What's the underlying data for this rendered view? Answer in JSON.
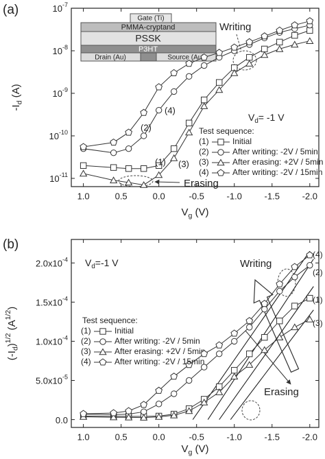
{
  "chart_data": [
    {
      "type": "line",
      "label": "(a)",
      "xlabel": [
        {
          "text": "V"
        },
        {
          "text": "g",
          "sub": true
        },
        {
          "text": " (V)"
        }
      ],
      "ylabel": [
        {
          "text": "-I"
        },
        {
          "text": "d",
          "sub": true
        },
        {
          "text": " (A)"
        }
      ],
      "condition": [
        {
          "text": "V"
        },
        {
          "text": "d",
          "sub": true
        },
        {
          "text": "= -1 V"
        }
      ],
      "log_y": true,
      "xlim": [
        1.16,
        -2.12
      ],
      "ylim": [
        6.4e-12,
        1e-07
      ],
      "xticks": [
        {
          "value": 1,
          "label": "1.0"
        },
        0.5,
        {
          "value": 0,
          "label": "0.0"
        },
        -0.5,
        {
          "value": -1,
          "label": "-1.0"
        },
        -1.5,
        {
          "value": -2,
          "label": "-2.0"
        }
      ],
      "yticks": [
        {
          "value": 1e-11,
          "label": "10-11"
        },
        {
          "value": 1e-10,
          "label": "10-10"
        },
        {
          "value": 1e-09,
          "label": "10-9"
        },
        {
          "value": 1e-08,
          "label": "10-8"
        },
        {
          "value": 1e-07,
          "label": "10-7"
        }
      ],
      "x": [
        1.0,
        0.6,
        0.4,
        0.2,
        0.0,
        -0.2,
        -0.4,
        -0.6,
        -0.8,
        -1.0,
        -1.2,
        -1.4,
        -1.6,
        -1.8,
        -2.0
      ],
      "series": [
        {
          "tag": "(1)",
          "name": "Initial",
          "marker": "square",
          "color": "#333333",
          "values": [
            2e-11,
            1.8e-11,
            1.7e-11,
            1.7e-11,
            2e-11,
            5e-11,
            2e-10,
            7e-10,
            1.8e-09,
            4e-09,
            7e-09,
            1.1e-08,
            1.6e-08,
            2.3e-08,
            3e-08
          ]
        },
        {
          "tag": "(2)",
          "name": "After writing: -2V / 5min",
          "marker": "circle",
          "color": "#333333",
          "values": [
            5e-11,
            4e-11,
            5e-11,
            1e-10,
            4e-10,
            1.1e-09,
            2.5e-09,
            4.5e-09,
            7e-09,
            1e-08,
            1.4e-08,
            2e-08,
            2.7e-08,
            3.3e-08,
            4e-08
          ]
        },
        {
          "tag": "(3)",
          "name": "After erasing: +2V / 5min",
          "marker": "triangle",
          "color": "#333333",
          "values": [
            1.3e-11,
            9e-12,
            8e-12,
            7e-12,
            1.2e-11,
            3e-11,
            1.2e-10,
            5e-10,
            1.2e-09,
            3e-09,
            5e-09,
            8e-09,
            1.1e-08,
            1.4e-08,
            1.7e-08
          ]
        },
        {
          "tag": "(4)",
          "name": "After writing: -2V / 15min",
          "marker": "pentagon",
          "color": "#333333",
          "values": [
            5.5e-11,
            7e-11,
            1.2e-10,
            3.5e-10,
            1.4e-09,
            3e-09,
            5e-09,
            7e-09,
            9e-09,
            1.2e-08,
            1.6e-08,
            2.2e-08,
            3e-08,
            4e-08,
            5e-08
          ]
        }
      ],
      "annotations": [
        "Writing",
        "Erasing",
        "(4)",
        "(2)",
        "(1)",
        "(3)",
        "Test sequence:"
      ],
      "inset": {
        "gate": "Gate (Ti)",
        "dielectric": "PMMA-cryptand",
        "electrolyte": "PSSK",
        "semiconductor": "P3HT",
        "drain": "Drain (Au)",
        "source": "Source (Au)"
      }
    },
    {
      "type": "line",
      "label": "(b)",
      "xlabel": [
        {
          "text": "V"
        },
        {
          "text": "g",
          "sub": true
        },
        {
          "text": " (V)"
        }
      ],
      "ylabel": [
        {
          "text": "(-I"
        },
        {
          "text": "d",
          "sub": true
        },
        {
          "text": ")"
        },
        {
          "text": "1/2",
          "sup": true
        },
        {
          "text": " (A"
        },
        {
          "text": "1/2",
          "sup": true
        },
        {
          "text": ")"
        }
      ],
      "condition": [
        {
          "text": "V"
        },
        {
          "text": "d",
          "sub": true
        },
        {
          "text": "=-1 V"
        }
      ],
      "log_y": false,
      "xlim": [
        1.16,
        -2.12
      ],
      "ylim": [
        -1e-05,
        0.00023
      ],
      "xticks": [
        {
          "value": 1,
          "label": "1.0"
        },
        0.5,
        {
          "value": 0,
          "label": "0.0"
        },
        -0.5,
        {
          "value": -1,
          "label": "-1.0"
        },
        -1.5,
        {
          "value": -2,
          "label": "-2.0"
        }
      ],
      "yticks": [
        {
          "value": 0,
          "label": "0.0"
        },
        {
          "value": 5e-05,
          "label": "5.0x10-5"
        },
        {
          "value": 0.0001,
          "label": "1.0x10-4"
        },
        {
          "value": 0.00015,
          "label": "1.5x10-4"
        },
        {
          "value": 0.0002,
          "label": "2.0x10-4"
        }
      ],
      "x": [
        1.0,
        0.6,
        0.4,
        0.2,
        0.0,
        -0.2,
        -0.4,
        -0.6,
        -0.8,
        -1.0,
        -1.2,
        -1.4,
        -1.6,
        -1.8,
        -2.0
      ],
      "series": [
        {
          "tag": "(1)",
          "name": "Initial",
          "marker": "square",
          "color": "#333333",
          "values": [
            4.5e-06,
            4.2e-06,
            4.1e-06,
            4.1e-06,
            4.5e-06,
            7e-06,
            1.4e-05,
            2.6e-05,
            4.2e-05,
            6.3e-05,
            8.4e-05,
            0.000105,
            0.000126,
            0.000145,
            0.000155
          ]
        },
        {
          "tag": "(2)",
          "name": "After writing: -2V / 5min",
          "marker": "circle",
          "color": "#333333",
          "values": [
            7e-06,
            6.3e-06,
            7e-06,
            1e-05,
            2e-05,
            3.3e-05,
            5e-05,
            6.7e-05,
            8.4e-05,
            0.0001,
            0.000118,
            0.000141,
            0.000164,
            0.000182,
            0.000197
          ]
        },
        {
          "tag": "(3)",
          "name": "After erasing: +2V / 5min",
          "marker": "triangle",
          "color": "#333333",
          "values": [
            3.6e-06,
            3e-06,
            2.8e-06,
            2.6e-06,
            3.5e-06,
            5.5e-06,
            1.1e-05,
            2.2e-05,
            3.5e-05,
            5.5e-05,
            7e-05,
            8.9e-05,
            0.000105,
            0.000118,
            0.000128
          ]
        },
        {
          "tag": "(4)",
          "name": "After writing: -2V / 15min",
          "marker": "pentagon",
          "color": "#333333",
          "values": [
            7.4e-06,
            8.4e-06,
            1.1e-05,
            1.9e-05,
            3.7e-05,
            5.5e-05,
            7e-05,
            8.4e-05,
            9.5e-05,
            0.00011,
            0.000126,
            0.000148,
            0.000173,
            0.000195,
            0.00021
          ]
        }
      ],
      "fit_lines": [
        {
          "x": [
            -0.45,
            -2.0
          ],
          "values": [
            0,
            0.000215
          ]
        },
        {
          "x": [
            -0.65,
            -2.05
          ],
          "values": [
            0,
            0.000205
          ]
        },
        {
          "x": [
            -0.8,
            -2.05
          ],
          "values": [
            0,
            0.00017
          ]
        },
        {
          "x": [
            -0.95,
            -2.05
          ],
          "values": [
            0,
            0.00014
          ]
        }
      ],
      "annotations": [
        "Writing",
        "Erasing",
        "(4)",
        "(2)",
        "(1)",
        "(3)",
        "Test sequence:"
      ]
    }
  ]
}
